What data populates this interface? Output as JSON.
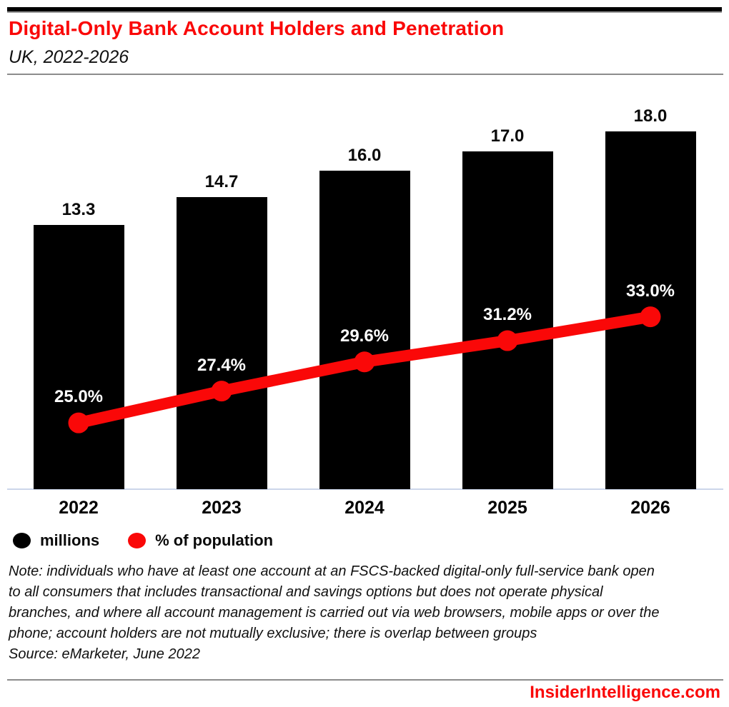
{
  "header": {
    "title": "Digital-Only Bank Account Holders and Penetration",
    "subtitle": "UK, 2022-2026"
  },
  "chart_data": {
    "type": "bar",
    "title": "Digital-Only Bank Account Holders and Penetration",
    "subtitle": "UK, 2022-2026",
    "categories": [
      "2022",
      "2023",
      "2024",
      "2025",
      "2026"
    ],
    "series": [
      {
        "name": "millions",
        "type": "bar",
        "color": "#000000",
        "values": [
          13.3,
          14.7,
          16.0,
          17.0,
          18.0
        ],
        "labels": [
          "13.3",
          "14.7",
          "16.0",
          "17.0",
          "18.0"
        ],
        "ylim": [
          0,
          20
        ]
      },
      {
        "name": "% of population",
        "type": "line",
        "color": "#fa0808",
        "values": [
          25.0,
          27.4,
          29.6,
          31.2,
          33.0
        ],
        "labels": [
          "25.0%",
          "27.4%",
          "29.6%",
          "31.2%",
          "33.0%"
        ],
        "ylim": [
          20,
          50
        ]
      }
    ],
    "xlabel": "",
    "ylabel": "",
    "grid": false,
    "legend_position": "bottom-left"
  },
  "legend": {
    "items": [
      {
        "label": "millions",
        "color": "#000000"
      },
      {
        "label": "% of population",
        "color": "#fa0808"
      }
    ]
  },
  "note": "Note: individuals who have at least one account at an FSCS-backed digital-only full-service bank open to all consumers that includes transactional and savings options but does not operate physical branches, and where all account management is carried out via web browsers, mobile apps or over the phone; account holders are not mutually exclusive; there is overlap between groups",
  "source": "Source: eMarketer, June 2022",
  "footer": {
    "site": "InsiderIntelligence.com"
  },
  "colors": {
    "accent_red": "#fa0808",
    "bar_black": "#000000",
    "axis_line": "#ccd6ea",
    "rule_gray": "#8c8c8c"
  }
}
